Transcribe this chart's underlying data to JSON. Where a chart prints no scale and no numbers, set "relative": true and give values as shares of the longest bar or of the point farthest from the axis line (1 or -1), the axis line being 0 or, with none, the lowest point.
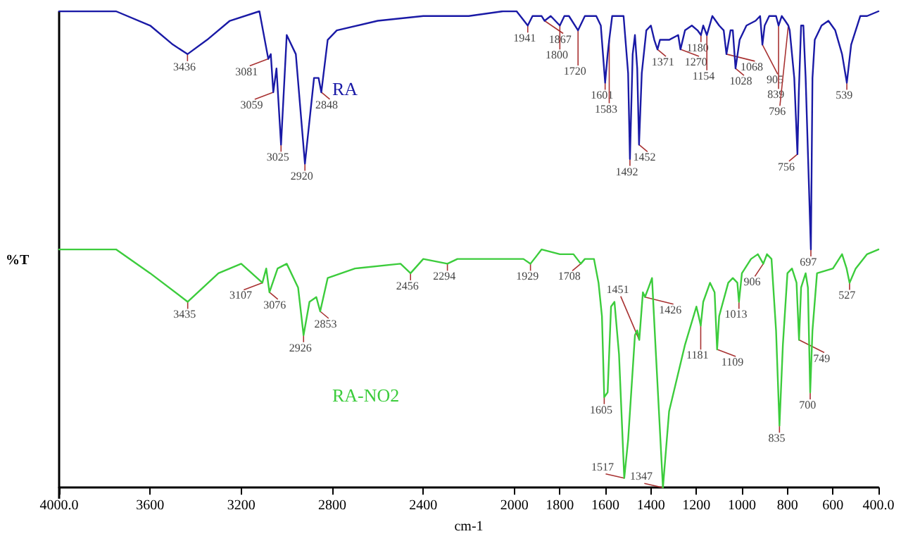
{
  "chart_data": {
    "type": "line",
    "relative": true,
    "xlabel": "cm-1",
    "ylabel": "%T",
    "xlim": [
      4000,
      400
    ],
    "xticks": [
      {
        "value": 4000,
        "label": "4000.0"
      },
      3600,
      3200,
      2800,
      2400,
      2000,
      1800,
      1600,
      1400,
      1200,
      1000,
      800,
      600,
      {
        "value": 400,
        "label": "400.0"
      }
    ],
    "tick_labels": "x",
    "marker": "none",
    "line_style": "solid",
    "series": [
      {
        "name": "RA",
        "color": "#1a1aa6",
        "x": [
          4000,
          3750,
          3600,
          3500,
          3436,
          3350,
          3250,
          3120,
          3081,
          3070,
          3059,
          3045,
          3025,
          3000,
          2960,
          2920,
          2880,
          2860,
          2848,
          2820,
          2780,
          2600,
          2400,
          2200,
          2050,
          1990,
          1941,
          1920,
          1880,
          1867,
          1840,
          1800,
          1780,
          1760,
          1720,
          1690,
          1640,
          1620,
          1601,
          1590,
          1583,
          1570,
          1540,
          1520,
          1500,
          1492,
          1480,
          1470,
          1460,
          1452,
          1440,
          1420,
          1400,
          1385,
          1371,
          1360,
          1320,
          1280,
          1270,
          1250,
          1220,
          1195,
          1180,
          1170,
          1154,
          1130,
          1100,
          1080,
          1068,
          1050,
          1040,
          1028,
          1010,
          980,
          940,
          920,
          910,
          900,
          880,
          850,
          839,
          825,
          810,
          796,
          790,
          770,
          756,
          750,
          740,
          730,
          720,
          697,
          690,
          680,
          650,
          620,
          590,
          560,
          539,
          520,
          480,
          450,
          400
        ],
        "values": [
          1.0,
          1.0,
          0.97,
          0.93,
          0.91,
          0.94,
          0.98,
          1.0,
          0.9,
          0.91,
          0.83,
          0.88,
          0.72,
          0.95,
          0.91,
          0.68,
          0.86,
          0.86,
          0.83,
          0.94,
          0.96,
          0.98,
          0.99,
          0.99,
          1.0,
          1.0,
          0.97,
          0.99,
          0.99,
          0.98,
          0.99,
          0.97,
          0.99,
          0.99,
          0.96,
          0.99,
          0.99,
          0.97,
          0.85,
          0.91,
          0.94,
          0.99,
          0.99,
          0.99,
          0.87,
          0.69,
          0.91,
          0.95,
          0.88,
          0.72,
          0.87,
          0.96,
          0.97,
          0.94,
          0.92,
          0.94,
          0.94,
          0.95,
          0.92,
          0.96,
          0.97,
          0.96,
          0.95,
          0.97,
          0.95,
          0.99,
          0.97,
          0.96,
          0.91,
          0.96,
          0.96,
          0.88,
          0.94,
          0.97,
          0.98,
          0.99,
          0.93,
          0.97,
          0.99,
          0.99,
          0.97,
          0.99,
          0.98,
          0.97,
          0.96,
          0.86,
          0.7,
          0.83,
          0.97,
          0.97,
          0.86,
          0.5,
          0.86,
          0.94,
          0.97,
          0.98,
          0.96,
          0.91,
          0.85,
          0.93,
          0.99,
          0.99,
          1.0
        ]
      },
      {
        "name": "RA-NO2",
        "color": "#3ccc3c",
        "x": [
          4000,
          3750,
          3600,
          3435,
          3300,
          3200,
          3107,
          3090,
          3076,
          3040,
          3000,
          2950,
          2926,
          2900,
          2870,
          2853,
          2820,
          2700,
          2500,
          2456,
          2400,
          2294,
          2250,
          2100,
          1960,
          1929,
          1880,
          1800,
          1740,
          1708,
          1690,
          1650,
          1630,
          1615,
          1605,
          1590,
          1575,
          1560,
          1540,
          1517,
          1500,
          1470,
          1460,
          1451,
          1435,
          1426,
          1410,
          1395,
          1380,
          1347,
          1320,
          1250,
          1200,
          1190,
          1181,
          1170,
          1140,
          1120,
          1109,
          1100,
          1060,
          1040,
          1020,
          1013,
          1000,
          960,
          930,
          906,
          890,
          870,
          850,
          835,
          820,
          800,
          780,
          760,
          749,
          740,
          720,
          710,
          700,
          690,
          670,
          600,
          560,
          540,
          527,
          500,
          450,
          400
        ],
        "values": [
          0.5,
          0.5,
          0.45,
          0.39,
          0.45,
          0.47,
          0.43,
          0.46,
          0.41,
          0.46,
          0.47,
          0.42,
          0.32,
          0.39,
          0.4,
          0.37,
          0.44,
          0.46,
          0.47,
          0.45,
          0.48,
          0.47,
          0.48,
          0.48,
          0.48,
          0.47,
          0.5,
          0.49,
          0.49,
          0.47,
          0.48,
          0.48,
          0.43,
          0.36,
          0.19,
          0.2,
          0.38,
          0.39,
          0.28,
          0.02,
          0.1,
          0.32,
          0.33,
          0.31,
          0.41,
          0.4,
          0.42,
          0.44,
          0.3,
          0.0,
          0.16,
          0.3,
          0.38,
          0.36,
          0.34,
          0.39,
          0.43,
          0.41,
          0.29,
          0.36,
          0.43,
          0.44,
          0.43,
          0.39,
          0.45,
          0.48,
          0.49,
          0.47,
          0.49,
          0.48,
          0.33,
          0.13,
          0.3,
          0.45,
          0.46,
          0.43,
          0.31,
          0.42,
          0.45,
          0.42,
          0.2,
          0.33,
          0.45,
          0.46,
          0.49,
          0.46,
          0.43,
          0.46,
          0.49,
          0.5
        ]
      }
    ],
    "annotations": [
      {
        "text": "3436",
        "x": 3436,
        "y": 0.91
      },
      {
        "text": "3081",
        "x": 3081,
        "y": 0.9
      },
      {
        "text": "3059",
        "x": 3059,
        "y": 0.83
      },
      {
        "text": "3025",
        "x": 3025,
        "y": 0.72
      },
      {
        "text": "2920",
        "x": 2920,
        "y": 0.68
      },
      {
        "text": "2848",
        "x": 2848,
        "y": 0.83
      },
      {
        "text": "1941",
        "x": 1941,
        "y": 0.97
      },
      {
        "text": "1867",
        "x": 1867,
        "y": 0.98
      },
      {
        "text": "1800",
        "x": 1800,
        "y": 0.97
      },
      {
        "text": "1720",
        "x": 1720,
        "y": 0.96
      },
      {
        "text": "1601",
        "x": 1601,
        "y": 0.85
      },
      {
        "text": "1583",
        "x": 1583,
        "y": 0.94
      },
      {
        "text": "1492",
        "x": 1492,
        "y": 0.69
      },
      {
        "text": "1452",
        "x": 1452,
        "y": 0.72
      },
      {
        "text": "1371",
        "x": 1371,
        "y": 0.92
      },
      {
        "text": "1270",
        "x": 1270,
        "y": 0.92
      },
      {
        "text": "1180",
        "x": 1180,
        "y": 0.95
      },
      {
        "text": "1154",
        "x": 1154,
        "y": 0.95
      },
      {
        "text": "1068",
        "x": 1068,
        "y": 0.91
      },
      {
        "text": "1028",
        "x": 1028,
        "y": 0.88
      },
      {
        "text": "905",
        "x": 910,
        "y": 0.93
      },
      {
        "text": "839",
        "x": 839,
        "y": 0.97
      },
      {
        "text": "796",
        "x": 796,
        "y": 0.97
      },
      {
        "text": "756",
        "x": 756,
        "y": 0.7
      },
      {
        "text": "697",
        "x": 697,
        "y": 0.5
      },
      {
        "text": "539",
        "x": 539,
        "y": 0.85
      },
      {
        "text": "3435",
        "x": 3435,
        "y": 0.39
      },
      {
        "text": "3107",
        "x": 3107,
        "y": 0.43
      },
      {
        "text": "3076",
        "x": 3076,
        "y": 0.41
      },
      {
        "text": "2926",
        "x": 2926,
        "y": 0.32
      },
      {
        "text": "2853",
        "x": 2853,
        "y": 0.37
      },
      {
        "text": "2456",
        "x": 2456,
        "y": 0.45
      },
      {
        "text": "2294",
        "x": 2294,
        "y": 0.47
      },
      {
        "text": "1929",
        "x": 1929,
        "y": 0.47
      },
      {
        "text": "1708",
        "x": 1708,
        "y": 0.47
      },
      {
        "text": "1605",
        "x": 1605,
        "y": 0.19
      },
      {
        "text": "1517",
        "x": 1517,
        "y": 0.02
      },
      {
        "text": "1451",
        "x": 1451,
        "y": 0.31
      },
      {
        "text": "1426",
        "x": 1426,
        "y": 0.4
      },
      {
        "text": "1347",
        "x": 1347,
        "y": 0.0
      },
      {
        "text": "1181",
        "x": 1181,
        "y": 0.34
      },
      {
        "text": "1109",
        "x": 1109,
        "y": 0.29
      },
      {
        "text": "1013",
        "x": 1013,
        "y": 0.39
      },
      {
        "text": "906",
        "x": 906,
        "y": 0.47
      },
      {
        "text": "835",
        "x": 835,
        "y": 0.13
      },
      {
        "text": "749",
        "x": 749,
        "y": 0.31
      },
      {
        "text": "700",
        "x": 700,
        "y": 0.2
      },
      {
        "text": "527",
        "x": 527,
        "y": 0.43
      }
    ]
  }
}
